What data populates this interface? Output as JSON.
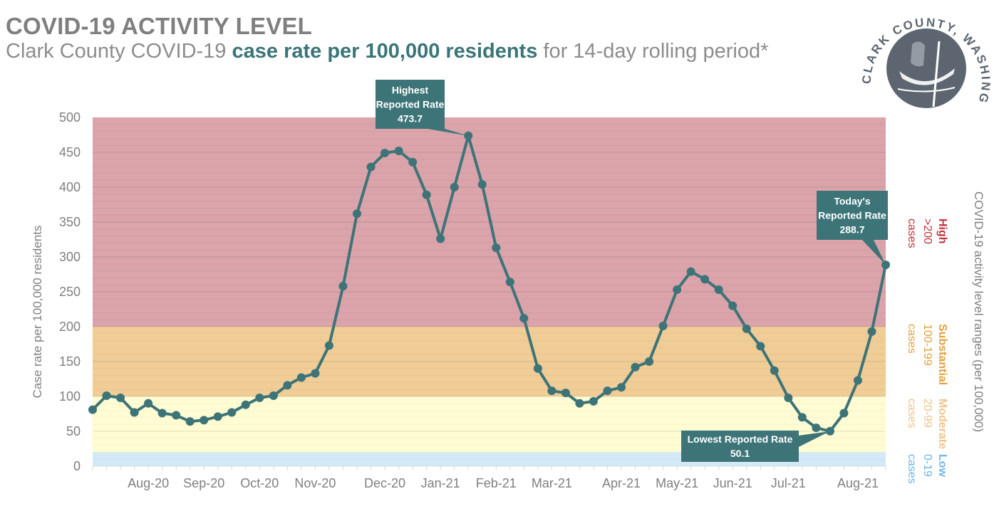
{
  "header": {
    "title": "COVID-19 ACTIVITY LEVEL",
    "subtitle_pre": "Clark County COVID-19 ",
    "subtitle_highlight": "case rate per 100,000 residents",
    "subtitle_post": " for 14-day rolling period*"
  },
  "logo": {
    "text": "CLARK COUNTY, WASHINGTON",
    "icon": "canoe-paddler-seal-icon"
  },
  "colors": {
    "line": "#3d7478",
    "high_band": "#dba3aa",
    "substantial_band": "#f0cd96",
    "moderate_band": "#fffcd3",
    "low_band": "#d3e9f7",
    "high_text": "#c0353f",
    "substantial_text": "#e2a23f",
    "moderate_text": "#efc48a",
    "low_text": "#6fb6e6",
    "axis_text": "#7f7f7f",
    "callout": "#3d7478"
  },
  "chart_data": {
    "type": "line",
    "title": "COVID-19 ACTIVITY LEVEL",
    "subtitle": "Clark County COVID-19 case rate per 100,000 residents for 14-day rolling period*",
    "xlabel": "",
    "ylabel": "Case rate per 100,000 residents",
    "y2label": "COVID-19 activity level ranges (per 100,000)",
    "ylim": [
      0,
      500
    ],
    "yticks": [
      0,
      50,
      100,
      150,
      200,
      250,
      300,
      350,
      400,
      450,
      500
    ],
    "grid": true,
    "x_tick_labels": [
      {
        "label": "Aug-20",
        "index": 4
      },
      {
        "label": "Sep-20",
        "index": 8
      },
      {
        "label": "Oct-20",
        "index": 12
      },
      {
        "label": "Nov-20",
        "index": 16
      },
      {
        "label": "Dec-20",
        "index": 21
      },
      {
        "label": "Jan-21",
        "index": 25
      },
      {
        "label": "Feb-21",
        "index": 29
      },
      {
        "label": "Mar-21",
        "index": 33
      },
      {
        "label": "Apr-21",
        "index": 38
      },
      {
        "label": "May-21",
        "index": 42
      },
      {
        "label": "Jun-21",
        "index": 46
      },
      {
        "label": "Jul-21",
        "index": 50
      },
      {
        "label": "Aug-21",
        "index": 55
      }
    ],
    "series": [
      {
        "name": "14-day case rate per 100,000",
        "values": [
          81,
          101,
          98,
          77,
          90,
          76,
          73,
          64,
          66,
          71,
          77,
          88,
          98,
          101,
          116,
          127,
          133,
          173,
          258,
          362,
          429,
          449,
          452,
          436,
          389,
          326,
          400,
          473.7,
          404,
          313,
          264,
          212,
          140,
          108,
          105,
          90,
          93,
          108,
          113,
          142,
          150,
          201,
          253,
          279,
          268,
          253,
          230,
          197,
          172,
          137,
          98,
          70,
          55,
          50.1,
          76,
          123,
          193,
          288.7
        ]
      }
    ],
    "bands": [
      {
        "name": "Low",
        "range": "0-19",
        "unit": "cases",
        "from": 0,
        "to": 20
      },
      {
        "name": "Moderate",
        "range": "20-99",
        "unit": "cases",
        "from": 20,
        "to": 100
      },
      {
        "name": "Substantial",
        "range": "100-199",
        "unit": "cases",
        "from": 100,
        "to": 200
      },
      {
        "name": "High",
        "range": ">200",
        "unit": "cases",
        "from": 200,
        "to": 500
      }
    ],
    "annotations": [
      {
        "name": "highest",
        "lines": [
          "Highest",
          "Reported Rate",
          "473.7"
        ],
        "index": 27
      },
      {
        "name": "today",
        "lines": [
          "Today's",
          "Reported Rate",
          "288.7"
        ],
        "index": 57
      },
      {
        "name": "lowest",
        "lines": [
          "Lowest Reported Rate",
          "50.1"
        ],
        "index": 53
      }
    ]
  }
}
